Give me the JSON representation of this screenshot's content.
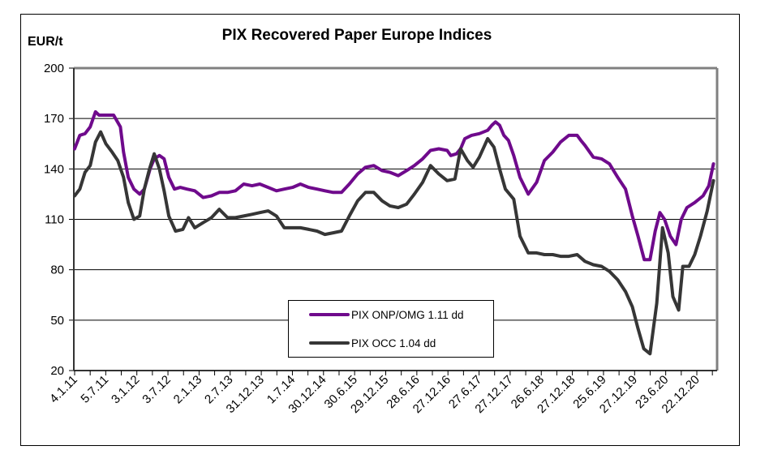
{
  "chart_data": {
    "type": "line",
    "title": "PIX Recovered Paper Europe Indices",
    "ylabel": "EUR/t",
    "xlabel": "",
    "ylim": [
      20,
      200
    ],
    "yticks": [
      20,
      50,
      80,
      110,
      140,
      170,
      200
    ],
    "ytick_labels": [
      "20",
      "50",
      "80",
      "110",
      "140",
      "170",
      "200"
    ],
    "grid": true,
    "x_unit": "months since Jan 2011",
    "xlim": [
      0,
      124
    ],
    "xtick_labels": [
      "4.1.11",
      "5.7.11",
      "3.1.12",
      "3.7.12",
      "2.1.13",
      "2.7.13",
      "31.12.13",
      "1.7.14",
      "30.12.14",
      "30.6.15",
      "29.12.15",
      "28.6.16",
      "27.12.16",
      "27.6.17",
      "27.12.17",
      "26.6.18",
      "27.12.18",
      "25.6.19",
      "27.12.19",
      "23.6.20",
      "22.12.20"
    ],
    "legend_position": "bottom-center",
    "series": [
      {
        "name": "PIX ONP/OMG 1.11 dd",
        "color": "#6f0a8c",
        "points": [
          [
            0,
            152
          ],
          [
            1,
            160
          ],
          [
            2,
            161
          ],
          [
            3,
            165
          ],
          [
            4,
            174
          ],
          [
            4.7,
            172
          ],
          [
            6,
            172
          ],
          [
            7.5,
            172
          ],
          [
            8.8,
            165
          ],
          [
            9.4,
            150
          ],
          [
            10.3,
            135
          ],
          [
            11.4,
            128
          ],
          [
            12.5,
            125
          ],
          [
            13.4,
            128
          ],
          [
            14.5,
            140
          ],
          [
            15.3,
            146
          ],
          [
            16.3,
            148
          ],
          [
            17.2,
            146
          ],
          [
            18.1,
            135
          ],
          [
            19.2,
            128
          ],
          [
            20.3,
            129
          ],
          [
            21.6,
            128
          ],
          [
            23.1,
            127
          ],
          [
            24.7,
            123
          ],
          [
            26.3,
            124
          ],
          [
            27.8,
            126
          ],
          [
            29.4,
            126
          ],
          [
            30.9,
            127
          ],
          [
            32.5,
            131
          ],
          [
            34.1,
            130
          ],
          [
            35.6,
            131
          ],
          [
            37.2,
            129
          ],
          [
            38.8,
            127
          ],
          [
            40.3,
            128
          ],
          [
            41.9,
            129
          ],
          [
            43.4,
            131
          ],
          [
            45,
            129
          ],
          [
            46.6,
            128
          ],
          [
            48.1,
            127
          ],
          [
            49.7,
            126
          ],
          [
            51.3,
            126
          ],
          [
            52.8,
            131
          ],
          [
            54.4,
            137
          ],
          [
            55.9,
            141
          ],
          [
            57.5,
            142
          ],
          [
            59.1,
            139
          ],
          [
            60.6,
            138
          ],
          [
            62.2,
            136
          ],
          [
            63.8,
            139
          ],
          [
            65.3,
            142
          ],
          [
            66.9,
            146
          ],
          [
            68.4,
            151
          ],
          [
            70,
            152
          ],
          [
            71.6,
            151
          ],
          [
            72.3,
            148
          ],
          [
            73.4,
            149
          ],
          [
            74.2,
            152
          ],
          [
            75,
            158
          ],
          [
            76.3,
            160
          ],
          [
            77.8,
            161
          ],
          [
            79.4,
            163
          ],
          [
            80.2,
            166
          ],
          [
            80.9,
            168
          ],
          [
            81.7,
            166
          ],
          [
            82.5,
            160
          ],
          [
            83.4,
            157
          ],
          [
            84.4,
            148
          ],
          [
            85.6,
            135
          ],
          [
            87.2,
            125
          ],
          [
            88.8,
            132
          ],
          [
            90.3,
            145
          ],
          [
            91.9,
            150
          ],
          [
            93.4,
            156
          ],
          [
            95,
            160
          ],
          [
            96.6,
            160
          ],
          [
            97.3,
            157
          ],
          [
            98.1,
            154
          ],
          [
            99.7,
            147
          ],
          [
            101.3,
            146
          ],
          [
            102.8,
            143
          ],
          [
            104.4,
            135
          ],
          [
            105.9,
            128
          ],
          [
            107.2,
            112
          ],
          [
            108.3,
            100
          ],
          [
            109.5,
            86
          ],
          [
            110.6,
            86
          ],
          [
            111.6,
            103
          ],
          [
            112.5,
            114
          ],
          [
            113.4,
            110
          ],
          [
            114.5,
            100
          ],
          [
            115.6,
            95
          ],
          [
            116.6,
            110
          ],
          [
            117.7,
            117
          ],
          [
            119.2,
            120
          ],
          [
            120.8,
            124
          ],
          [
            121.9,
            130
          ],
          [
            122.8,
            143
          ]
        ]
      },
      {
        "name": "PIX OCC 1.04 dd",
        "color": "#363636",
        "points": [
          [
            0,
            124
          ],
          [
            1,
            128
          ],
          [
            2,
            138
          ],
          [
            3,
            142
          ],
          [
            4,
            156
          ],
          [
            5,
            162
          ],
          [
            6,
            155
          ],
          [
            7.2,
            150
          ],
          [
            8.3,
            145
          ],
          [
            9.4,
            135
          ],
          [
            10.3,
            120
          ],
          [
            11.4,
            110
          ],
          [
            12.5,
            112
          ],
          [
            13.4,
            128
          ],
          [
            14.4,
            140
          ],
          [
            15.3,
            149
          ],
          [
            16.3,
            140
          ],
          [
            17.2,
            127
          ],
          [
            18.1,
            112
          ],
          [
            19.4,
            103
          ],
          [
            20.8,
            104
          ],
          [
            21.9,
            111
          ],
          [
            23.1,
            105
          ],
          [
            24.7,
            108
          ],
          [
            26.3,
            111
          ],
          [
            27.8,
            116
          ],
          [
            29.4,
            111
          ],
          [
            30.9,
            111
          ],
          [
            32.5,
            112
          ],
          [
            34.1,
            113
          ],
          [
            35.6,
            114
          ],
          [
            37.2,
            115
          ],
          [
            38.8,
            112
          ],
          [
            40.3,
            105
          ],
          [
            41.9,
            105
          ],
          [
            43.4,
            105
          ],
          [
            45,
            104
          ],
          [
            46.6,
            103
          ],
          [
            48.1,
            101
          ],
          [
            49.7,
            102
          ],
          [
            51.3,
            103
          ],
          [
            52.8,
            112
          ],
          [
            54.4,
            121
          ],
          [
            55.9,
            126
          ],
          [
            57.5,
            126
          ],
          [
            59.1,
            121
          ],
          [
            60.6,
            118
          ],
          [
            62.2,
            117
          ],
          [
            63.8,
            119
          ],
          [
            65.3,
            125
          ],
          [
            66.9,
            132
          ],
          [
            68.4,
            142
          ],
          [
            70,
            137
          ],
          [
            71.6,
            133
          ],
          [
            73.1,
            134
          ],
          [
            74.2,
            152
          ],
          [
            75.5,
            145
          ],
          [
            76.6,
            141
          ],
          [
            77.8,
            147
          ],
          [
            79.4,
            158
          ],
          [
            80.6,
            153
          ],
          [
            81.7,
            140
          ],
          [
            82.8,
            128
          ],
          [
            84.4,
            122
          ],
          [
            85.6,
            100
          ],
          [
            87.2,
            90
          ],
          [
            88.8,
            90
          ],
          [
            90.3,
            89
          ],
          [
            91.9,
            89
          ],
          [
            93.4,
            88
          ],
          [
            95,
            88
          ],
          [
            96.6,
            89
          ],
          [
            98.1,
            85
          ],
          [
            99.7,
            83
          ],
          [
            101.3,
            82
          ],
          [
            102.8,
            79
          ],
          [
            104.4,
            74
          ],
          [
            105.9,
            67
          ],
          [
            107.2,
            58
          ],
          [
            108.3,
            45
          ],
          [
            109.4,
            33
          ],
          [
            110.6,
            30
          ],
          [
            111.9,
            60
          ],
          [
            113,
            105
          ],
          [
            114.1,
            90
          ],
          [
            115,
            64
          ],
          [
            116.1,
            56
          ],
          [
            116.9,
            82
          ],
          [
            118.1,
            82
          ],
          [
            119.2,
            89
          ],
          [
            120.3,
            100
          ],
          [
            121.6,
            115
          ],
          [
            122.8,
            133
          ]
        ]
      }
    ]
  }
}
